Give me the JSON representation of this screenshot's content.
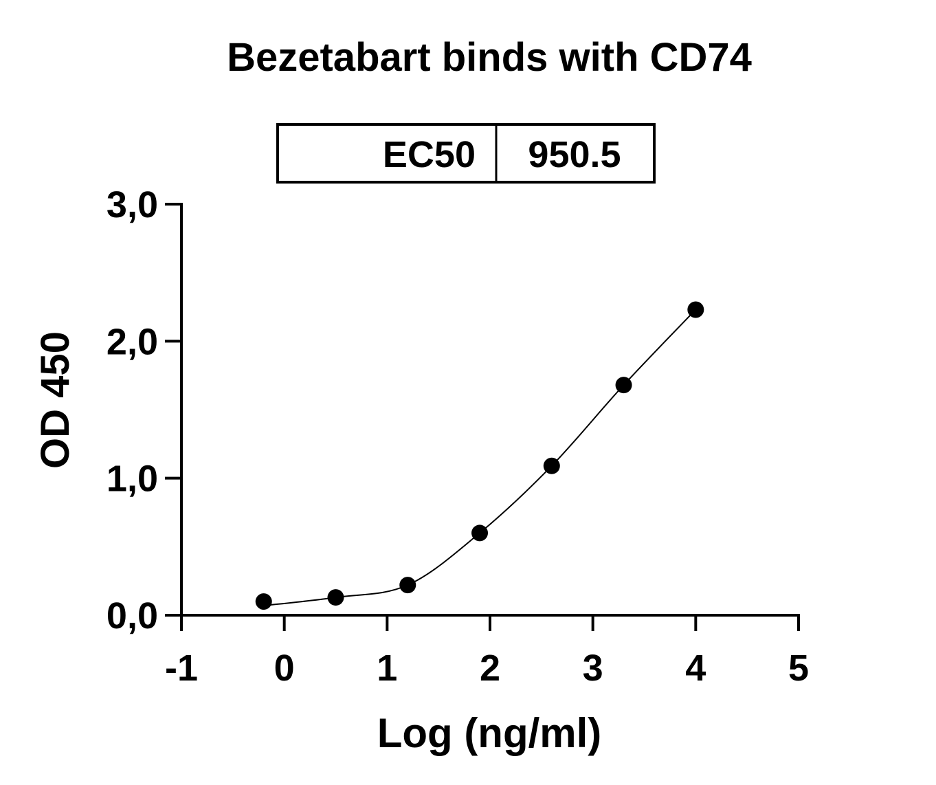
{
  "chart_data": {
    "type": "scatter",
    "title": "Bezetabart binds with CD74",
    "xlabel": "Log (ng/ml)",
    "ylabel": "OD 450",
    "xlim": [
      -1,
      5
    ],
    "ylim": [
      0,
      3
    ],
    "xticks": [
      "-1",
      "0",
      "1",
      "2",
      "3",
      "4",
      "5"
    ],
    "yticks": [
      "0,0",
      "1,0",
      "2,0",
      "3,0"
    ],
    "grid": false,
    "legend_table": {
      "label": "EC50",
      "value": "950.5"
    },
    "fit": "sigmoidal curve",
    "color": "#000000",
    "points": [
      {
        "x": -0.2,
        "y": 0.1
      },
      {
        "x": 0.5,
        "y": 0.13
      },
      {
        "x": 1.2,
        "y": 0.22
      },
      {
        "x": 1.9,
        "y": 0.6
      },
      {
        "x": 2.6,
        "y": 1.09
      },
      {
        "x": 3.3,
        "y": 1.68
      },
      {
        "x": 4.0,
        "y": 2.23
      }
    ]
  }
}
